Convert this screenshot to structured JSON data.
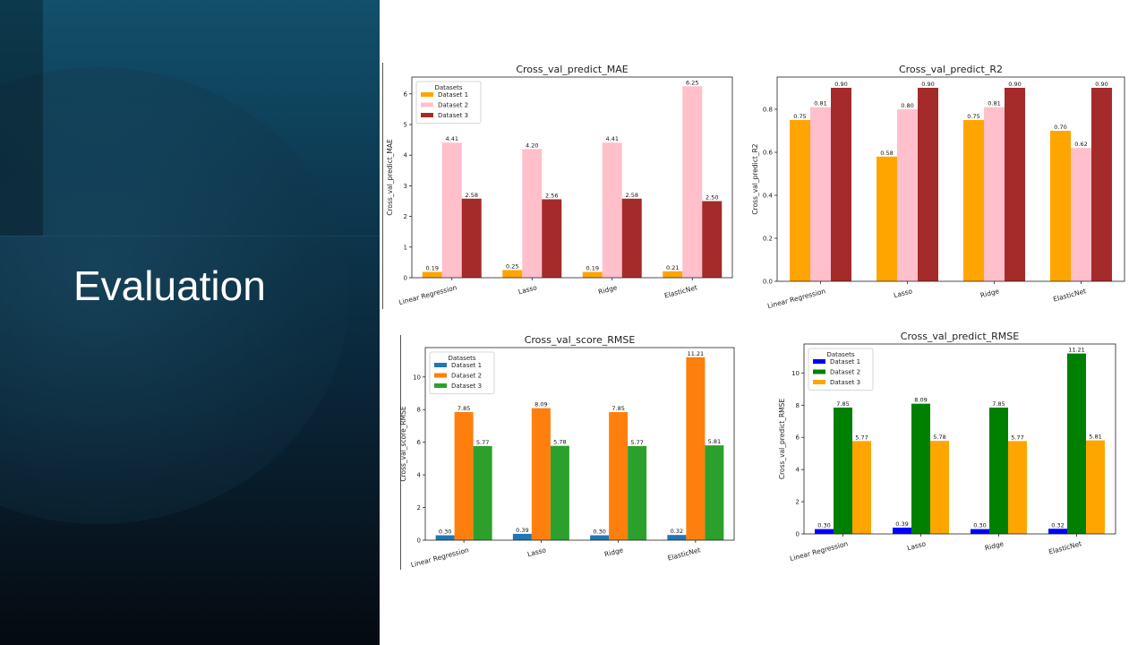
{
  "slide": {
    "title": "Evaluation"
  },
  "chart_data": [
    {
      "type": "bar",
      "title": "Cross_val_predict_MAE",
      "xlabel": "",
      "ylabel": "Cross_val_predict_MAE",
      "categories": [
        "Linear Regression",
        "Lasso",
        "Ridge",
        "ElasticNet"
      ],
      "series": [
        {
          "name": "Dataset 1",
          "color": "#ffa500",
          "values": [
            0.19,
            0.25,
            0.19,
            0.21
          ]
        },
        {
          "name": "Dataset 2",
          "color": "#ffc0cb",
          "values": [
            4.41,
            4.2,
            4.41,
            6.25
          ]
        },
        {
          "name": "Dataset 3",
          "color": "#a52a2a",
          "values": [
            2.58,
            2.56,
            2.58,
            2.5
          ]
        }
      ],
      "ylim": [
        0,
        6.55
      ],
      "yticks": [
        0,
        1,
        2,
        3,
        4,
        5,
        6
      ],
      "legend_title": "Datasets",
      "legend_position": "top-left",
      "grid": false
    },
    {
      "type": "bar",
      "title": "Cross_val_predict_R2",
      "xlabel": "",
      "ylabel": "Cross_val_predict_R2",
      "categories": [
        "Linear Regression",
        "Lasso",
        "Ridge",
        "ElasticNet"
      ],
      "series": [
        {
          "name": "",
          "color": "#ffa500",
          "values": [
            0.75,
            0.58,
            0.75,
            0.7
          ]
        },
        {
          "name": "",
          "color": "#ffc0cb",
          "values": [
            0.81,
            0.8,
            0.81,
            0.62
          ]
        },
        {
          "name": "",
          "color": "#a52a2a",
          "values": [
            0.9,
            0.9,
            0.9,
            0.9
          ]
        }
      ],
      "ylim": [
        0,
        0.95
      ],
      "yticks": [
        0.0,
        0.2,
        0.4,
        0.6,
        0.8
      ],
      "legend_title": "",
      "legend_position": "none",
      "grid": false
    },
    {
      "type": "bar",
      "title": "Cross_val_score_RMSE",
      "xlabel": "",
      "ylabel": "Cross_val_score_RMSE",
      "categories": [
        "Linear Regression",
        "Lasso",
        "Ridge",
        "ElasticNet"
      ],
      "series": [
        {
          "name": "Dataset 1",
          "color": "#1f77b4",
          "values": [
            0.3,
            0.39,
            0.3,
            0.32
          ]
        },
        {
          "name": "Dataset 2",
          "color": "#ff7f0e",
          "values": [
            7.85,
            8.09,
            7.85,
            11.21
          ]
        },
        {
          "name": "Dataset 3",
          "color": "#2ca02c",
          "values": [
            5.77,
            5.78,
            5.77,
            5.81
          ]
        }
      ],
      "ylim": [
        0,
        11.8
      ],
      "yticks": [
        0,
        2,
        4,
        6,
        8,
        10
      ],
      "legend_title": "Datasets",
      "legend_position": "top-left",
      "grid": false
    },
    {
      "type": "bar",
      "title": "Cross_val_predict_RMSE",
      "xlabel": "",
      "ylabel": "Cross_val_predict_RMSE",
      "categories": [
        "Linear Regression",
        "Lasso",
        "Ridge",
        "ElasticNet"
      ],
      "series": [
        {
          "name": "Dataset 1",
          "color": "#0000ff",
          "values": [
            0.3,
            0.39,
            0.3,
            0.32
          ]
        },
        {
          "name": "Dataset 2",
          "color": "#008000",
          "values": [
            7.85,
            8.09,
            7.85,
            11.21
          ]
        },
        {
          "name": "Dataset 3",
          "color": "#ffa500",
          "values": [
            5.77,
            5.78,
            5.77,
            5.81
          ]
        }
      ],
      "ylim": [
        0,
        11.8
      ],
      "yticks": [
        0,
        2,
        4,
        6,
        8,
        10
      ],
      "legend_title": "Datasets",
      "legend_position": "top-left",
      "grid": false
    }
  ]
}
